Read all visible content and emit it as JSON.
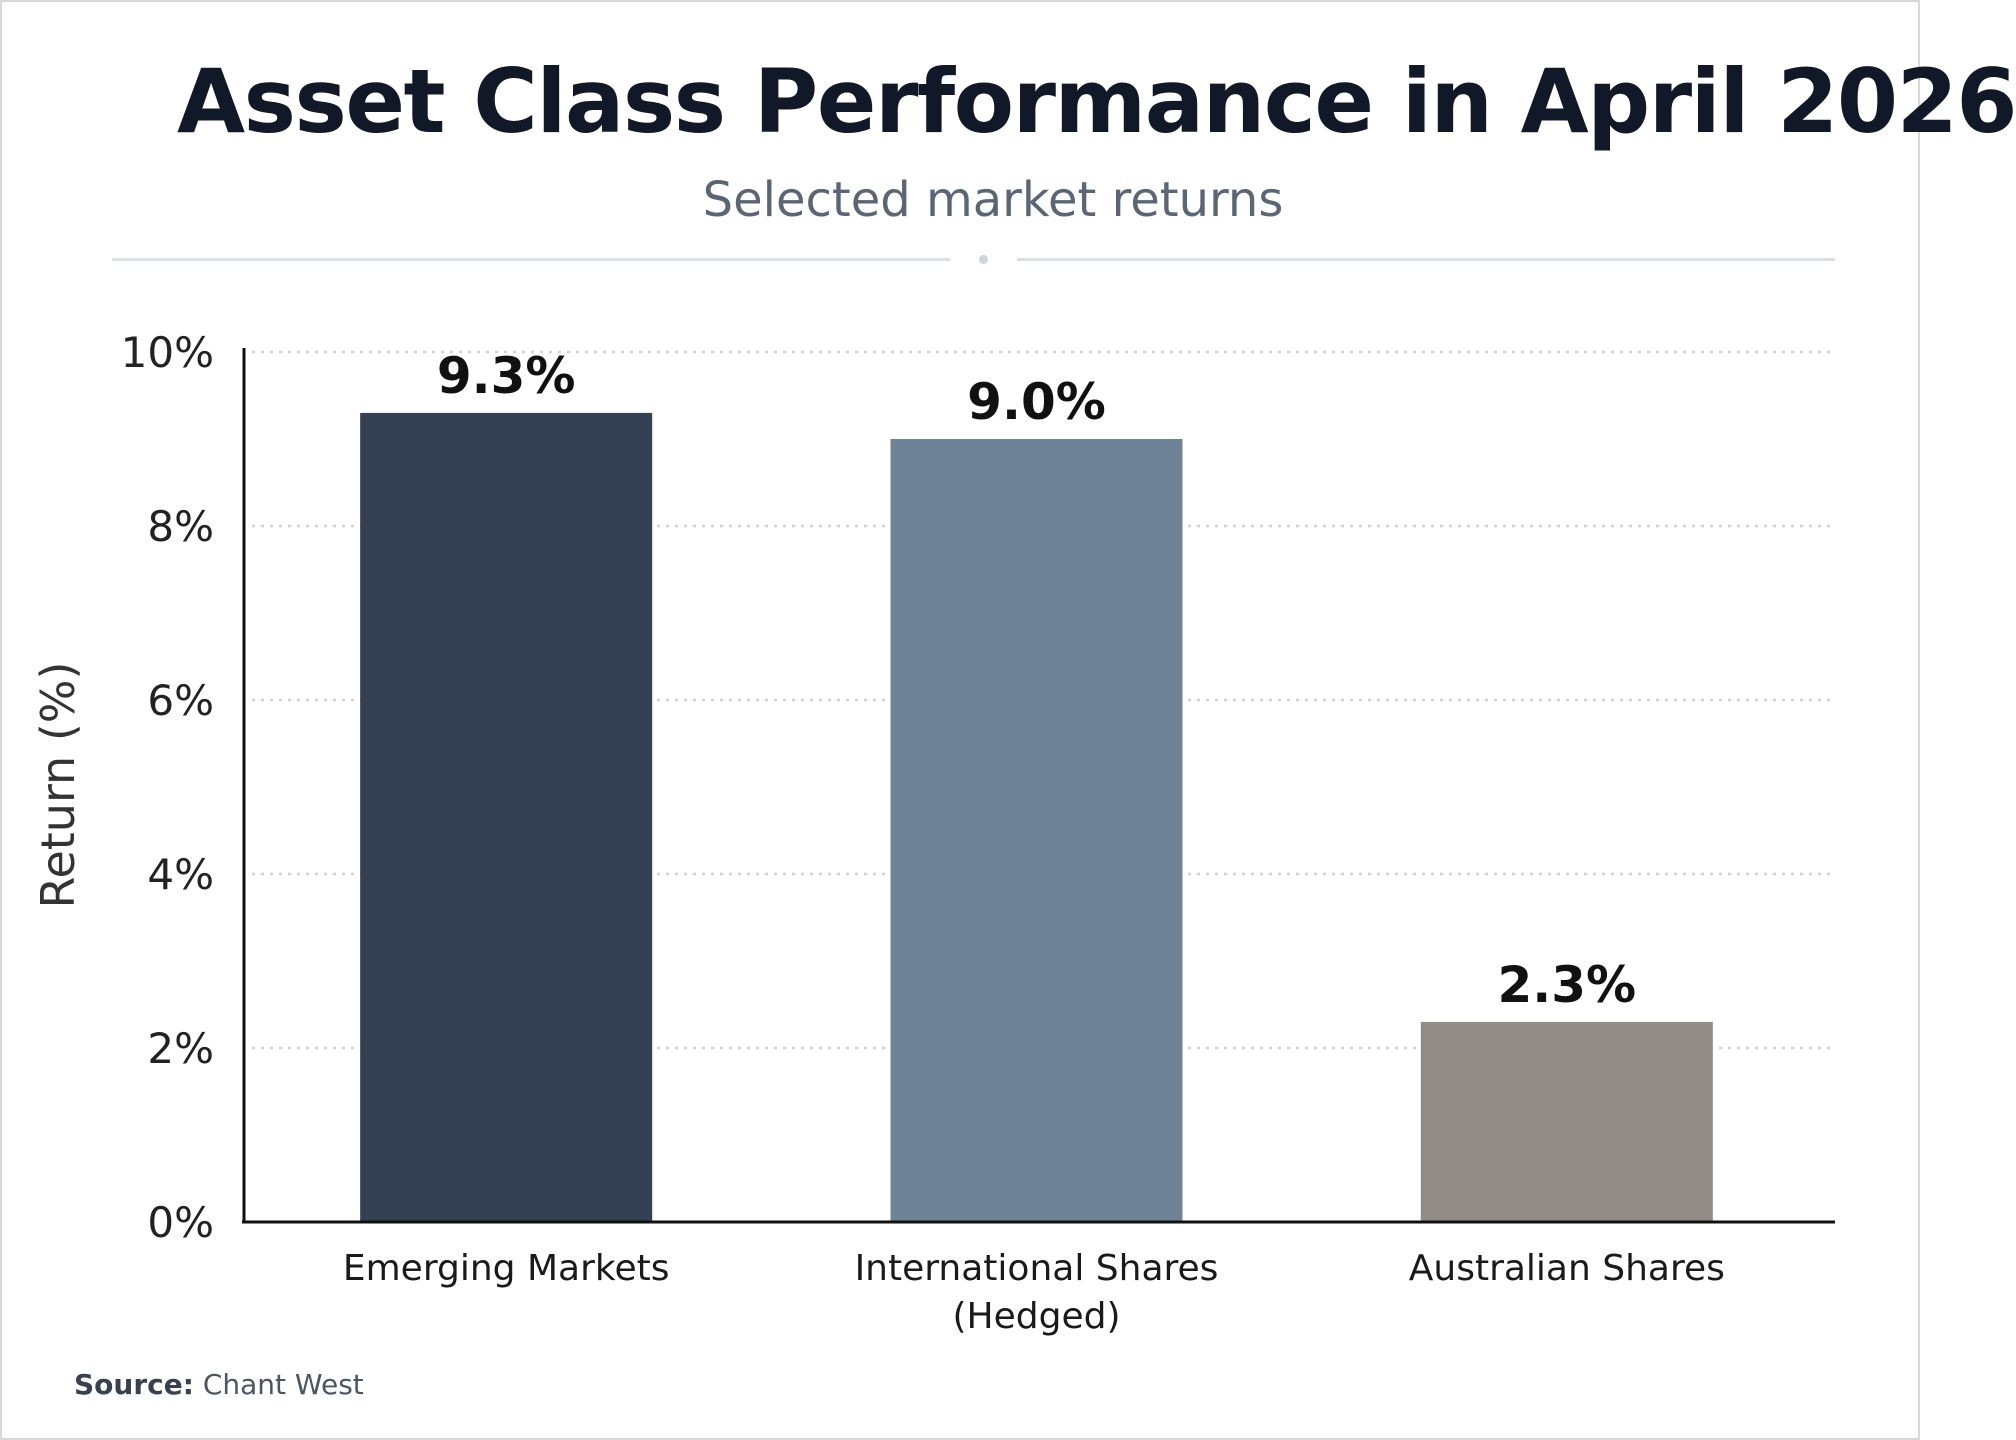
{
  "title": "Asset Class Performance in April 2026",
  "subtitle": "Selected market returns",
  "source": {
    "label": "Source:",
    "value": "Chant West"
  },
  "chart_data": {
    "type": "bar",
    "categories": [
      [
        "Emerging Markets"
      ],
      [
        "International Shares",
        "(Hedged)"
      ],
      [
        "Australian Shares"
      ]
    ],
    "values": [
      9.3,
      9.0,
      2.3
    ],
    "data_labels": [
      "9.3%",
      "9.0%",
      "2.3%"
    ],
    "colors": [
      "#334153",
      "#6e8396",
      "#918c88"
    ],
    "ylabel": "Return (%)",
    "ylim": [
      0,
      10
    ],
    "yticks": [
      0,
      2,
      4,
      6,
      8,
      10
    ],
    "ytick_labels": [
      "0%",
      "2%",
      "4%",
      "6%",
      "8%",
      "10%"
    ],
    "grid": true,
    "grid_style": "dotted",
    "legend": "none"
  }
}
